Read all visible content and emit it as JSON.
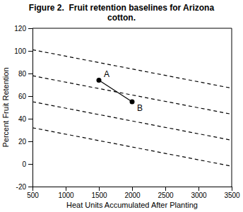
{
  "chart_data": {
    "type": "line",
    "title": "Figure 2.  Fruit retention baselines for Arizona\ncotton.",
    "xlabel": "Heat Units Accumulated After Planting",
    "ylabel": "Percent Fruit Retention",
    "xlim": [
      500,
      3500
    ],
    "ylim": [
      -20,
      120
    ],
    "xticks": [
      500,
      1000,
      1500,
      2000,
      2500,
      3000,
      3500
    ],
    "yticks": [
      -20,
      0,
      20,
      40,
      60,
      80,
      100,
      120
    ],
    "series": [
      {
        "x": [
          500,
          3500
        ],
        "values": [
          101,
          67
        ],
        "color": "#000000",
        "line_style": "dashed"
      },
      {
        "x": [
          500,
          3500
        ],
        "values": [
          78,
          44
        ],
        "color": "#000000",
        "line_style": "dashed"
      },
      {
        "x": [
          500,
          3500
        ],
        "values": [
          55,
          21
        ],
        "color": "#000000",
        "line_style": "dashed"
      },
      {
        "x": [
          500,
          3500
        ],
        "values": [
          32,
          -2
        ],
        "color": "#000000",
        "line_style": "dashed"
      },
      {
        "x": [
          1500,
          2000
        ],
        "values": [
          74,
          55
        ],
        "color": "#000000",
        "line_style": "solid",
        "marker": "circle"
      }
    ],
    "annotations": [
      {
        "x": 1500,
        "y": 74,
        "text": "A"
      },
      {
        "x": 2000,
        "y": 55,
        "text": "B"
      }
    ]
  }
}
